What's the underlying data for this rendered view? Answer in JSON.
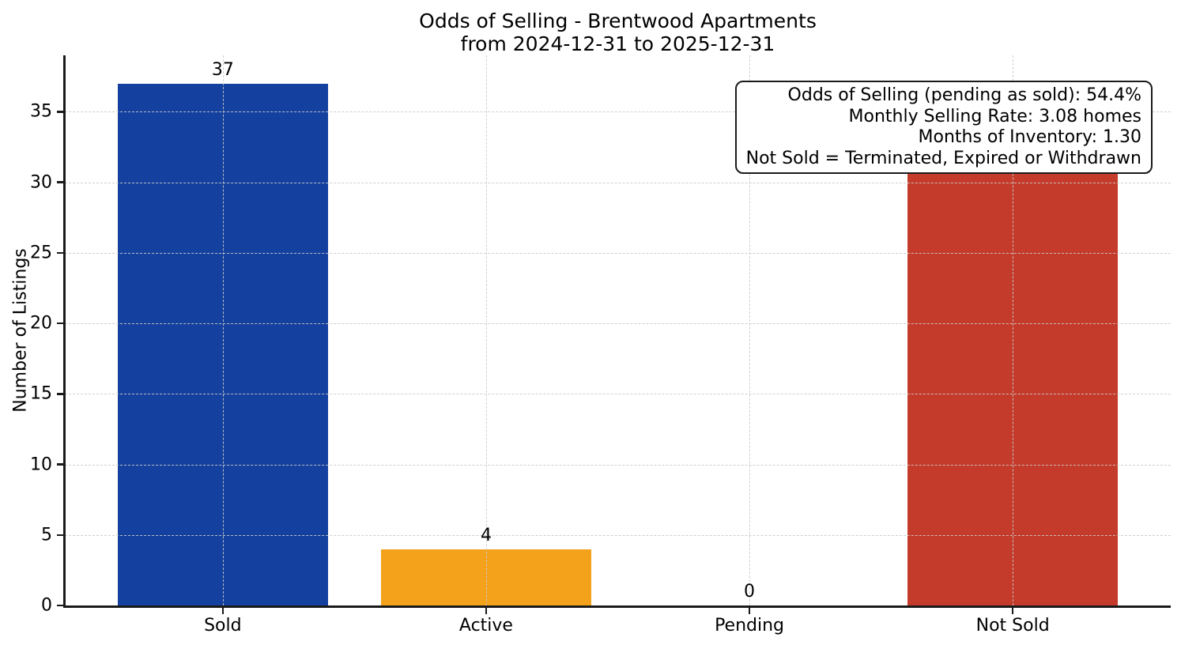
{
  "figure": {
    "title_line1": "Odds of Selling - Brentwood Apartments",
    "title_line2": "from 2024-12-31 to 2025-12-31"
  },
  "stats_box": {
    "lines": [
      "Odds of Selling (pending as sold): 54.4%",
      "Monthly Selling Rate: 3.08 homes",
      "Months of Inventory: 1.30",
      "Not Sold = Terminated, Expired or Withdrawn"
    ]
  },
  "chart_data": {
    "type": "bar",
    "title": "Odds of Selling - Brentwood Apartments\nfrom 2024-12-31 to 2025-12-31",
    "categories": [
      "Sold",
      "Active",
      "Pending",
      "Not Sold"
    ],
    "values": [
      37,
      4,
      0,
      31
    ],
    "bar_colors": [
      "#14419f",
      "#f4a11b",
      "#888888",
      "#c53b2b"
    ],
    "xlabel": "",
    "ylabel": "Number of Listings",
    "yticks": [
      0,
      5,
      10,
      15,
      20,
      25,
      30,
      35
    ],
    "ylim": [
      0,
      39
    ],
    "xlim_units": [
      -0.6,
      3.6
    ],
    "bar_width_units": 0.8,
    "grid": true,
    "grid_style": "dashed",
    "grid_above_bars": true,
    "legend": "none",
    "annotation_box_position": "top-right",
    "colors": {
      "spine": "#1a1a1a",
      "grid": "#cacaca",
      "text": "#000000",
      "background": "#ffffff"
    }
  }
}
